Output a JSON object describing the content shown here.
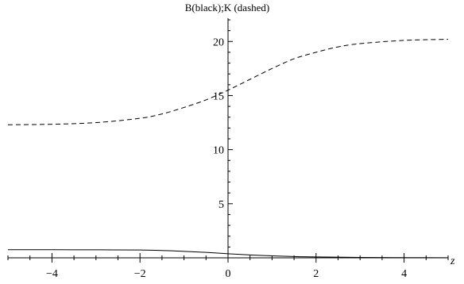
{
  "chart_data": {
    "type": "line",
    "title": "B(black);K (dashed)",
    "xlabel": "z",
    "ylabel": "",
    "xlim": [
      -5,
      5
    ],
    "ylim": [
      0,
      22
    ],
    "x_ticks": [
      -4,
      -2,
      0,
      2,
      4
    ],
    "y_ticks": [
      5,
      10,
      15,
      20
    ],
    "grid": false,
    "legend": "none",
    "axes_origin": [
      0,
      0
    ],
    "series": [
      {
        "style": "solid",
        "color": "#000000",
        "x": [
          -5,
          -4,
          -3,
          -2,
          -1.5,
          -1,
          -0.5,
          0,
          0.5,
          1,
          1.5,
          2,
          3,
          4,
          5
        ],
        "y": [
          0.75,
          0.75,
          0.74,
          0.72,
          0.68,
          0.6,
          0.5,
          0.38,
          0.27,
          0.18,
          0.12,
          0.08,
          0.04,
          0.02,
          0.01
        ]
      },
      {
        "style": "dashed",
        "color": "#000000",
        "x": [
          -5,
          -4,
          -3,
          -2,
          -1.5,
          -1,
          -0.5,
          0,
          0.5,
          1,
          1.5,
          2,
          2.5,
          3,
          4,
          5
        ],
        "y": [
          12.3,
          12.35,
          12.5,
          12.9,
          13.3,
          13.9,
          14.6,
          15.5,
          16.5,
          17.5,
          18.4,
          19.0,
          19.5,
          19.8,
          20.1,
          20.2
        ]
      }
    ]
  }
}
